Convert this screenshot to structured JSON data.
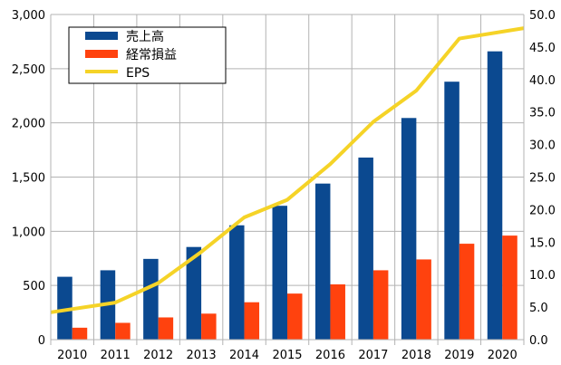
{
  "chart_data": {
    "type": "bar",
    "categories": [
      "2010",
      "2011",
      "2012",
      "2013",
      "2014",
      "2015",
      "2016",
      "2017",
      "2018",
      "2019",
      "2020"
    ],
    "series": [
      {
        "name": "売上高",
        "axis": "left",
        "kind": "bar",
        "color": "#0b4990",
        "values": [
          580,
          640,
          745,
          855,
          1055,
          1235,
          1440,
          1680,
          2045,
          2380,
          2660
        ]
      },
      {
        "name": "経常損益",
        "axis": "left",
        "kind": "bar",
        "color": "#ff420e",
        "values": [
          110,
          155,
          205,
          240,
          345,
          425,
          510,
          640,
          740,
          885,
          960
        ]
      },
      {
        "name": "EPS",
        "axis": "right",
        "kind": "line",
        "color": "#f5d327",
        "values": [
          4.2,
          5.7,
          8.7,
          13.5,
          18.8,
          21.5,
          27.0,
          33.5,
          38.3,
          46.3,
          47.9
        ]
      }
    ],
    "y_left": {
      "min": 0,
      "max": 3000,
      "ticks": [
        "0",
        "500",
        "1,000",
        "1,500",
        "2,000",
        "2,500",
        "3,000"
      ]
    },
    "y_right": {
      "min": 0,
      "max": 50,
      "ticks": [
        "0.0",
        "5.0",
        "10.0",
        "15.0",
        "20.0",
        "25.0",
        "30.0",
        "35.0",
        "40.0",
        "45.0",
        "50.0"
      ]
    },
    "grid": true,
    "legend_position": "top-left"
  }
}
